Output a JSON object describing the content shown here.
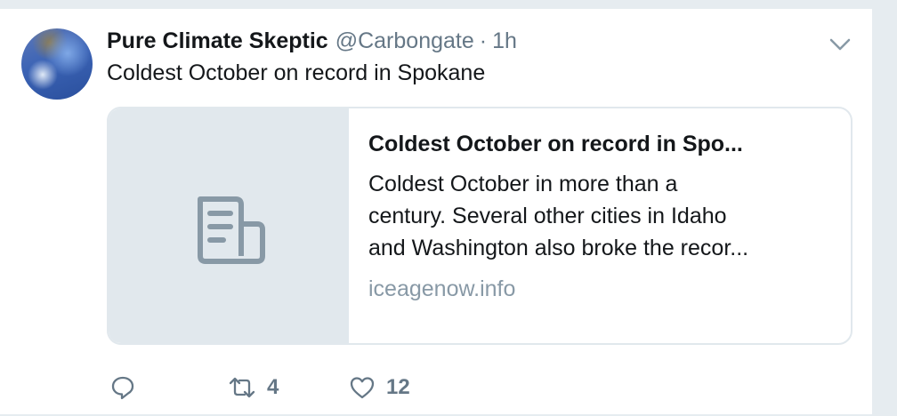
{
  "tweet": {
    "author_name": "Pure Climate Skeptic",
    "handle": "@Carbongate",
    "separator": "·",
    "time": "1h",
    "text": "Coldest October on record in Spokane",
    "menu_icon": "chevron-down-icon"
  },
  "card": {
    "media_icon": "document-icon",
    "title": "Coldest October on record in Spo...",
    "description_lines": [
      "Coldest October in more than a",
      "century. Several other cities in Idaho",
      "and Washington also broke the recor..."
    ],
    "domain": "iceagenow.info"
  },
  "actions": {
    "reply_icon": "reply-icon",
    "retweet_icon": "retweet-icon",
    "retweet_count": "4",
    "like_icon": "heart-icon",
    "like_count": "12"
  },
  "colors": {
    "background": "#e6ecf0",
    "text_primary": "#14171a",
    "text_secondary": "#657786",
    "card_border": "#e1e8ed",
    "link_domain": "#8899a6"
  }
}
